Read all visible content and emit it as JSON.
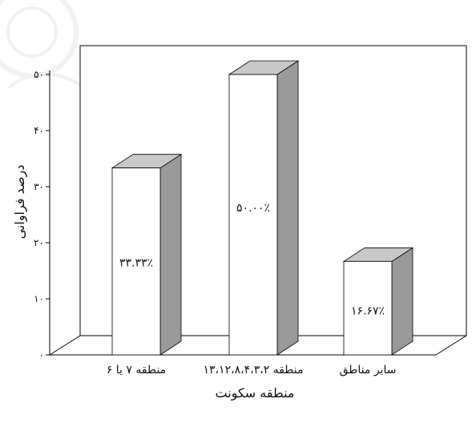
{
  "chart_data": {
    "type": "bar",
    "categories": [
      "منطقه ۷ یا ۶",
      "منطقه ۱۳،۱۲،۸،۴،۳،۲",
      "سایر مناطق"
    ],
    "values": [
      33.33,
      50.0,
      16.67
    ],
    "data_labels": [
      "۳۳.۳۳٪",
      "۵۰.۰۰٪",
      "۱۶.۶۷٪"
    ],
    "title": "",
    "xlabel": "منطقه سکونت",
    "ylabel": "درصد فراوانی",
    "ylim": [
      0,
      50
    ],
    "yticks": [
      0,
      10,
      20,
      30,
      40,
      50
    ],
    "ytick_labels": [
      "۰",
      "۱۰",
      "۲۰",
      "۳۰",
      "۴۰",
      "۵۰"
    ],
    "grid": false,
    "style": "3d-bar",
    "colors": {
      "bar_front": "#ffffff",
      "bar_side": "#9a9a9a",
      "bar_top": "#c8c8c8",
      "outline": "#000000",
      "watermark": "#d8d8d8"
    }
  }
}
